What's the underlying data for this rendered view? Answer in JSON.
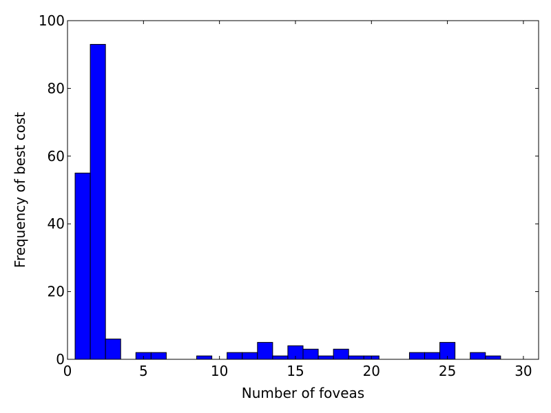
{
  "chart_data": {
    "type": "bar",
    "xlabel": "Number of foveas",
    "ylabel": "Frequency of best cost",
    "xlim": [
      0,
      31
    ],
    "ylim": [
      0,
      100
    ],
    "xticks": [
      0,
      5,
      10,
      15,
      20,
      25,
      30
    ],
    "yticks": [
      0,
      20,
      40,
      60,
      80,
      100
    ],
    "grid": false,
    "bar_color": "#0000ff",
    "edge_color": "#000000",
    "bin_width": 1,
    "bars": [
      {
        "x_start": 0.5,
        "value": 55
      },
      {
        "x_start": 1.5,
        "value": 93
      },
      {
        "x_start": 2.5,
        "value": 6
      },
      {
        "x_start": 4.5,
        "value": 2
      },
      {
        "x_start": 5.5,
        "value": 2
      },
      {
        "x_start": 8.5,
        "value": 1
      },
      {
        "x_start": 10.5,
        "value": 2
      },
      {
        "x_start": 11.5,
        "value": 2
      },
      {
        "x_start": 12.5,
        "value": 5
      },
      {
        "x_start": 13.5,
        "value": 1
      },
      {
        "x_start": 14.5,
        "value": 4
      },
      {
        "x_start": 15.5,
        "value": 3
      },
      {
        "x_start": 16.5,
        "value": 1
      },
      {
        "x_start": 17.5,
        "value": 3
      },
      {
        "x_start": 18.5,
        "value": 1
      },
      {
        "x_start": 19.5,
        "value": 1
      },
      {
        "x_start": 22.5,
        "value": 2
      },
      {
        "x_start": 23.5,
        "value": 2
      },
      {
        "x_start": 24.5,
        "value": 5
      },
      {
        "x_start": 26.5,
        "value": 2
      },
      {
        "x_start": 27.5,
        "value": 1
      }
    ]
  }
}
